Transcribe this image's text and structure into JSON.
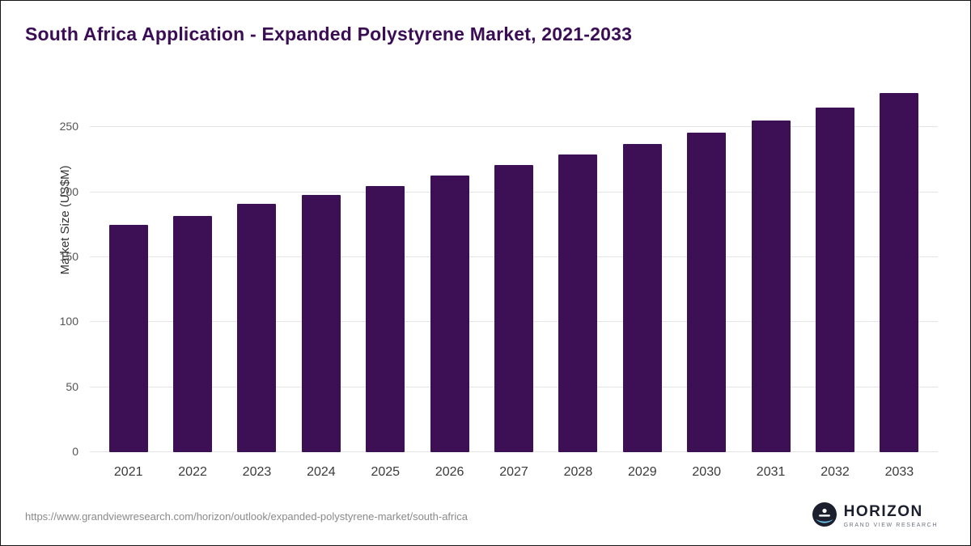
{
  "header": {
    "title": "South Africa Application - Expanded Polystyrene Market, 2021-2033"
  },
  "chart_data": {
    "type": "bar",
    "title": "South Africa Application - Expanded Polystyrene Market, 2021-2033",
    "categories": [
      "2021",
      "2022",
      "2023",
      "2024",
      "2025",
      "2026",
      "2027",
      "2028",
      "2029",
      "2030",
      "2031",
      "2032",
      "2033"
    ],
    "values": [
      175,
      182,
      191,
      198,
      205,
      213,
      221,
      229,
      237,
      246,
      255,
      265,
      276
    ],
    "xlabel": "",
    "ylabel": "Market Size (US$M)",
    "ylim": [
      0,
      285
    ],
    "yticks": [
      0,
      50,
      100,
      150,
      200,
      250
    ],
    "grid": true,
    "legend": false,
    "bar_color": "#3d1056"
  },
  "colors": {
    "title": "#3b0d55",
    "bar": "#3d1056",
    "gridline": "#e4e4e4"
  },
  "footer": {
    "source_url": "https://www.grandviewresearch.com/horizon/outlook/expanded-polystyrene-market/south-africa",
    "logo": {
      "name": "HORIZON",
      "subtitle": "GRAND VIEW RESEARCH"
    }
  }
}
